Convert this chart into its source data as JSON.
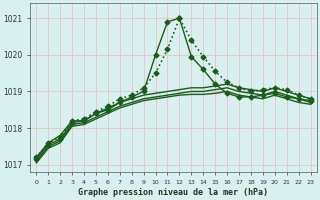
{
  "title": "Graphe pression niveau de la mer (hPa)",
  "background_color": "#d8f0f0",
  "grid_color": "#e8c8c8",
  "line_color": "#1a5c1a",
  "x": [
    0,
    1,
    2,
    3,
    4,
    5,
    6,
    7,
    8,
    9,
    10,
    11,
    12,
    13,
    14,
    15,
    16,
    17,
    18,
    19,
    20,
    21,
    22,
    23
  ],
  "series": [
    {
      "values": [
        1017.2,
        1017.6,
        1017.75,
        1018.2,
        1018.25,
        1018.45,
        1018.6,
        1018.8,
        1018.9,
        1019.1,
        1019.5,
        1020.15,
        1021.0,
        1020.4,
        1019.95,
        1019.55,
        1019.25,
        1019.1,
        1019.0,
        1019.05,
        1019.1,
        1019.05,
        1018.9,
        1018.8
      ],
      "lw": 1.2,
      "ls": ":",
      "marker": "D",
      "ms": 2.5,
      "alpha": 1.0
    },
    {
      "values": [
        1017.15,
        1017.55,
        1017.7,
        1018.15,
        1018.2,
        1018.4,
        1018.5,
        1018.7,
        1018.85,
        1019.0,
        1020.0,
        1020.9,
        1021.0,
        1019.95,
        1019.6,
        1019.2,
        1018.95,
        1018.85,
        1018.85,
        1018.9,
        1018.95,
        1018.85,
        1018.8,
        1018.75
      ],
      "lw": 1.0,
      "ls": "-",
      "marker": "D",
      "ms": 2.5,
      "alpha": 1.0
    },
    {
      "values": [
        1017.2,
        1017.6,
        1017.8,
        1018.2,
        1018.2,
        1018.4,
        1018.55,
        1018.7,
        1018.8,
        1018.9,
        1018.95,
        1019.0,
        1019.05,
        1019.1,
        1019.1,
        1019.15,
        1019.2,
        1019.1,
        1019.05,
        1019.0,
        1019.1,
        1019.0,
        1018.9,
        1018.8
      ],
      "lw": 1.0,
      "ls": "-",
      "marker": null,
      "ms": 0,
      "alpha": 1.0
    },
    {
      "values": [
        1017.1,
        1017.5,
        1017.65,
        1018.1,
        1018.15,
        1018.3,
        1018.45,
        1018.6,
        1018.7,
        1018.8,
        1018.85,
        1018.9,
        1018.95,
        1019.0,
        1019.0,
        1019.05,
        1019.1,
        1019.0,
        1018.95,
        1018.9,
        1019.0,
        1018.9,
        1018.8,
        1018.7
      ],
      "lw": 1.0,
      "ls": "-",
      "marker": null,
      "ms": 0,
      "alpha": 1.0
    },
    {
      "values": [
        1017.05,
        1017.45,
        1017.6,
        1018.05,
        1018.1,
        1018.25,
        1018.4,
        1018.55,
        1018.65,
        1018.75,
        1018.8,
        1018.85,
        1018.9,
        1018.92,
        1018.92,
        1018.95,
        1019.0,
        1018.9,
        1018.85,
        1018.8,
        1018.9,
        1018.8,
        1018.7,
        1018.65
      ],
      "lw": 1.0,
      "ls": "-",
      "marker": null,
      "ms": 0,
      "alpha": 1.0
    }
  ],
  "ylim": [
    1016.8,
    1021.4
  ],
  "yticks": [
    1017,
    1018,
    1019,
    1020,
    1021
  ],
  "xticks": [
    0,
    1,
    2,
    3,
    4,
    5,
    6,
    7,
    8,
    9,
    10,
    11,
    12,
    13,
    14,
    15,
    16,
    17,
    18,
    19,
    20,
    21,
    22,
    23
  ]
}
